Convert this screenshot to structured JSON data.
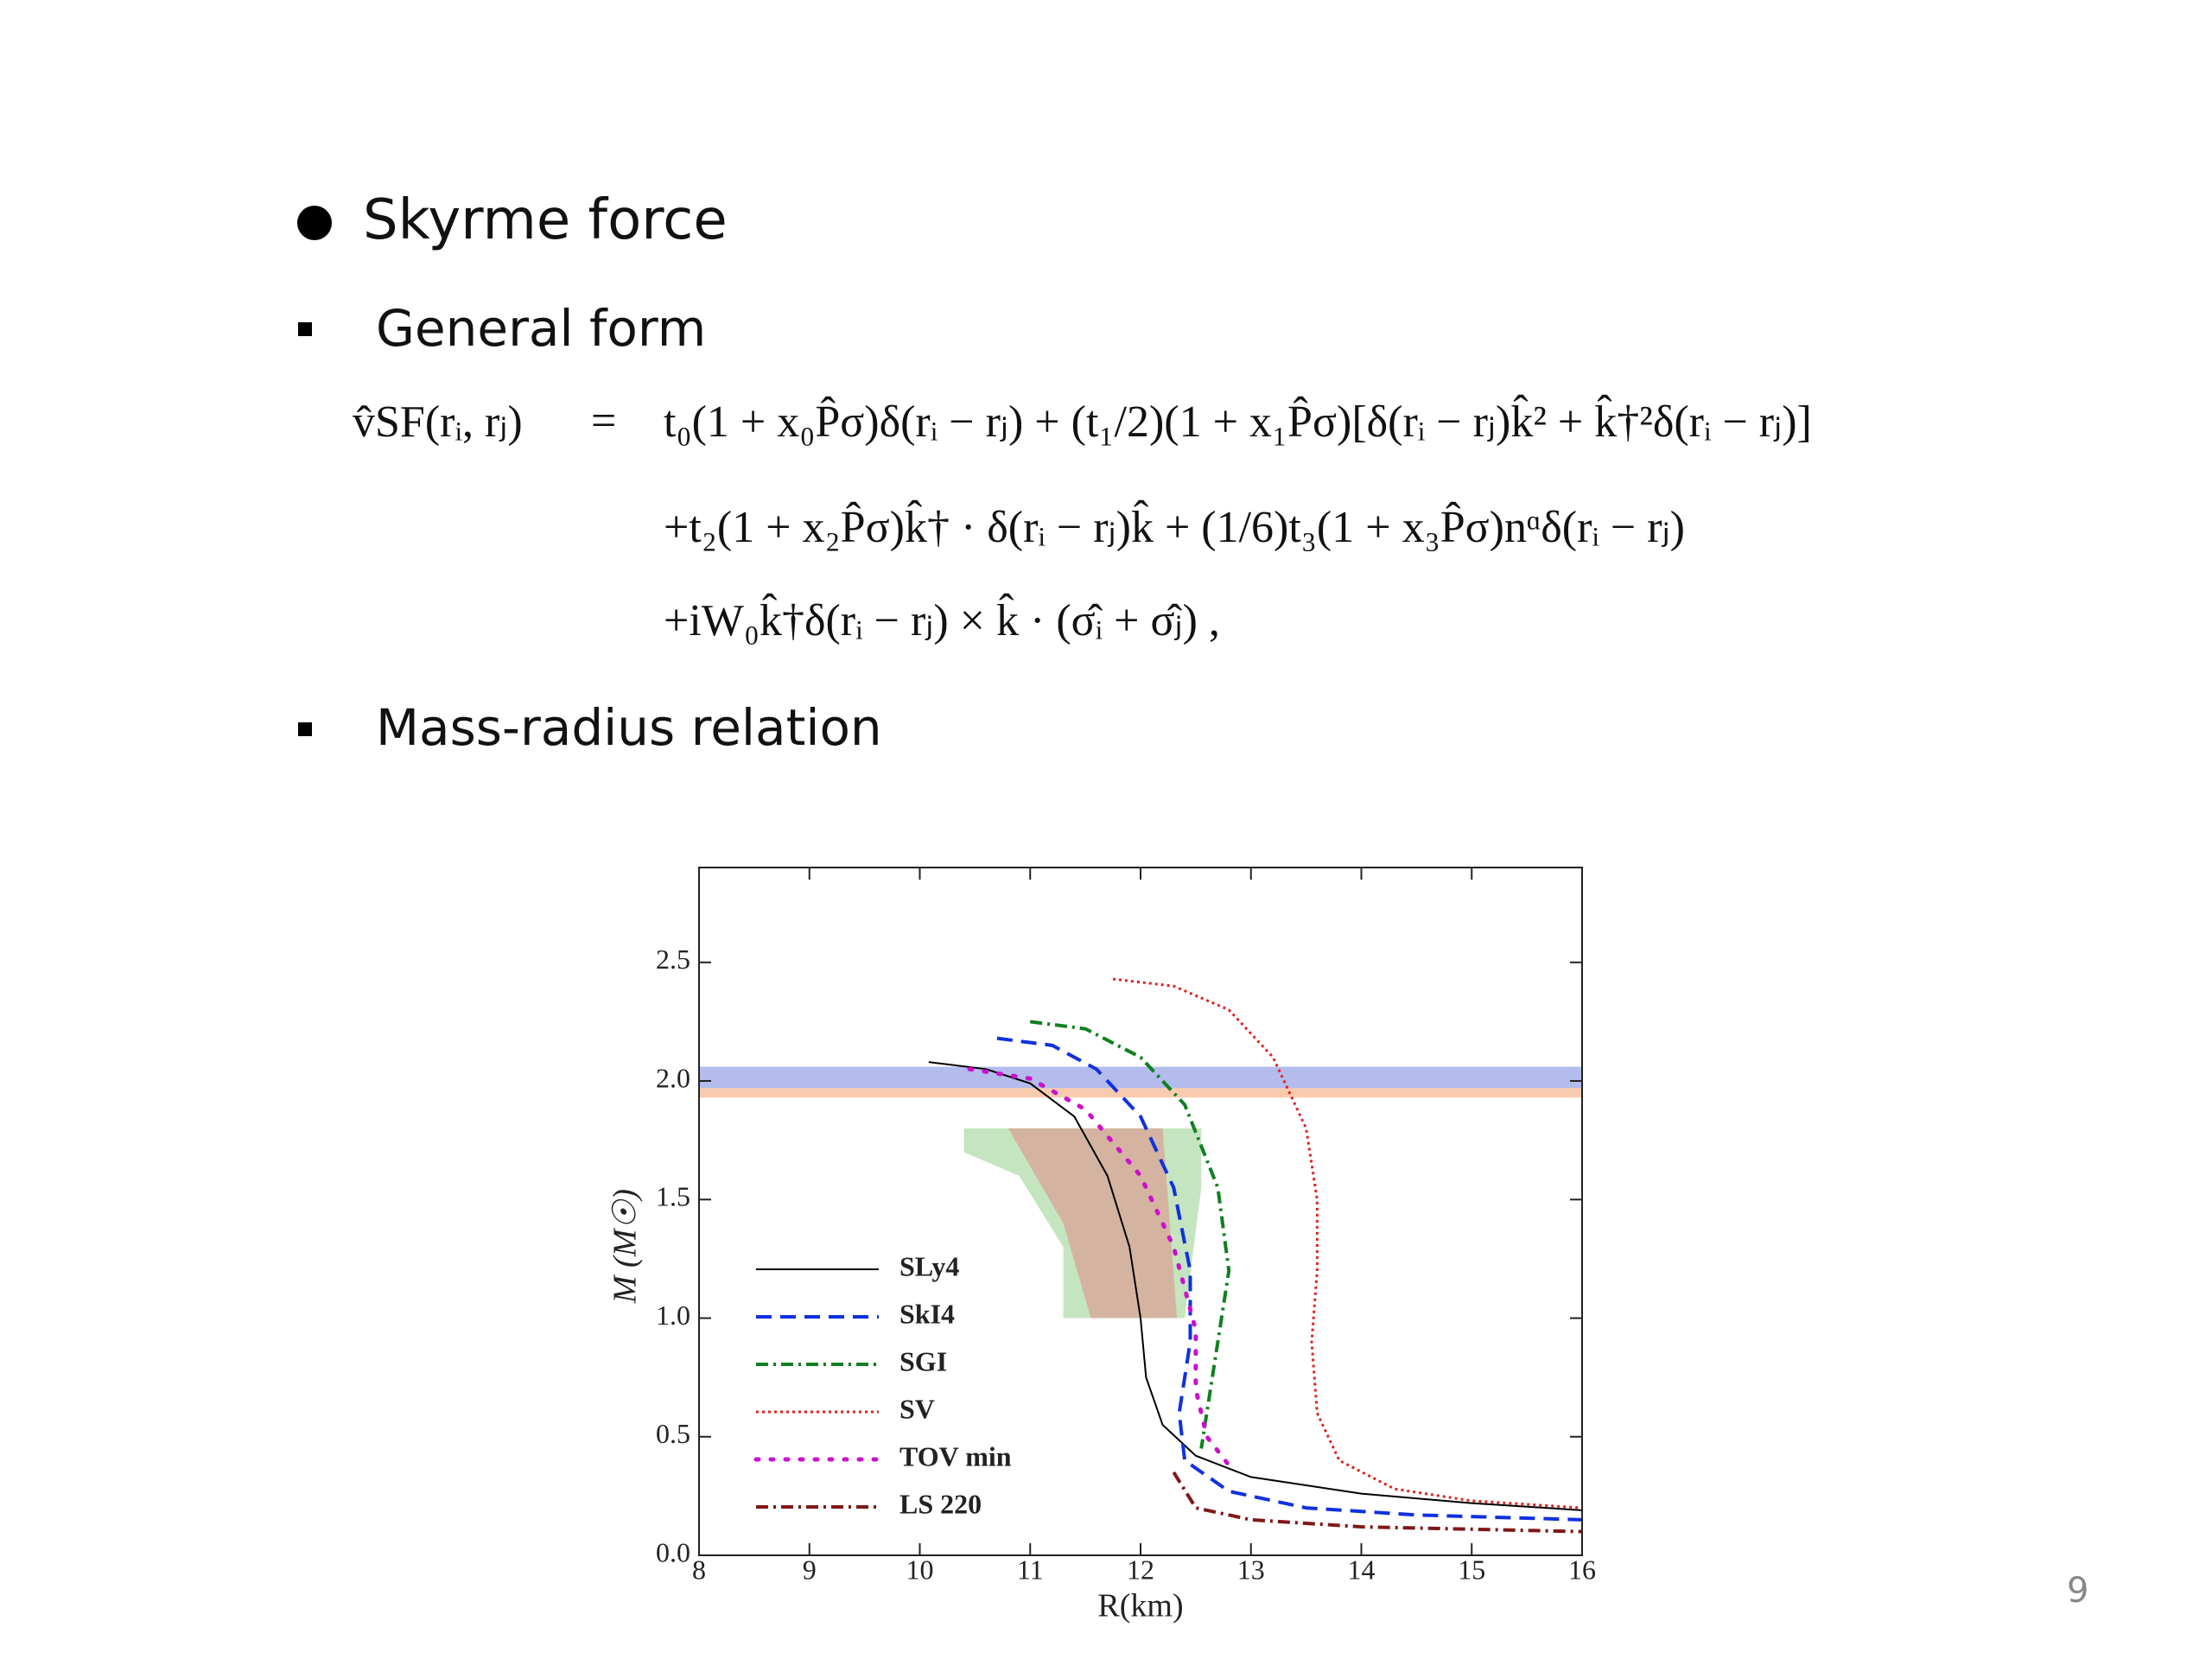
{
  "slide": {
    "heading": "Skyrme force",
    "items": [
      "General form",
      "Mass-radius relation"
    ],
    "equation": {
      "lhs": "v̂SF(rᵢ, rⱼ)",
      "relation": "=",
      "lines": [
        "t₀(1 + x₀P̂σ)δ(rᵢ − rⱼ) + (t₁/2)(1 + x₁P̂σ)[δ(rᵢ − rⱼ)k̂² + k̂†²δ(rᵢ − rⱼ)]",
        "+t₂(1 + x₂P̂σ)k̂† · δ(rᵢ − rⱼ)k̂ + (1/6)t₃(1 + x₃P̂σ)nᵅδ(rᵢ − rⱼ)",
        "+iW₀k̂†δ(rᵢ − rⱼ) × k̂ · (σ̂ᵢ + σ̂ⱼ) ,"
      ]
    },
    "page_number": "9"
  },
  "chart_data": {
    "type": "line",
    "x_label": "R(km)",
    "y_label": "M (M☉)",
    "xlim": [
      8,
      16
    ],
    "ylim": [
      0,
      2.9
    ],
    "xticks": [
      8,
      9,
      10,
      11,
      12,
      13,
      14,
      15,
      16
    ],
    "yticks": [
      {
        "value": 0,
        "label": "0.0"
      },
      0.5,
      {
        "value": 1,
        "label": "1.0"
      },
      1.5,
      {
        "value": 2,
        "label": "2.0"
      },
      2.5
    ],
    "legend": "lower left",
    "bands": [
      {
        "y": [
          1.97,
          2.06
        ],
        "color": "#8090e0"
      },
      {
        "y": [
          1.93,
          1.97
        ],
        "color": "#f4a878"
      }
    ],
    "regions": [
      {
        "x": [
          10.4,
          12.55,
          12.55,
          12.4,
          11.3,
          11.3,
          10.9,
          10.4
        ],
        "y": [
          1.8,
          1.8,
          1.55,
          1.0,
          1.0,
          1.3,
          1.6,
          1.7
        ],
        "color": "#c5e5c0"
      },
      {
        "x": [
          10.8,
          12.2,
          12.33,
          11.55,
          11.3
        ],
        "y": [
          1.8,
          1.8,
          1.0,
          1.0,
          1.4
        ],
        "color": "#d4b4a0"
      }
    ],
    "series": [
      {
        "name": "SLy4",
        "color": "#000000",
        "style": "solid",
        "x": [
          10.08,
          10.6,
          11.0,
          11.4,
          11.7,
          11.9,
          12.0,
          12.05,
          12.2,
          12.5,
          13,
          14,
          15,
          16
        ],
        "values": [
          2.08,
          2.05,
          1.99,
          1.85,
          1.6,
          1.3,
          1.0,
          0.75,
          0.55,
          0.42,
          0.33,
          0.26,
          0.22,
          0.19
        ]
      },
      {
        "name": "SkI4",
        "color": "#1030e0",
        "style": "dashed",
        "x": [
          10.7,
          11.2,
          11.6,
          12.0,
          12.3,
          12.45,
          12.45,
          12.35,
          12.4,
          12.8,
          13.5,
          14.5,
          16
        ],
        "values": [
          2.18,
          2.15,
          2.05,
          1.85,
          1.55,
          1.2,
          0.9,
          0.6,
          0.4,
          0.27,
          0.2,
          0.17,
          0.15
        ]
      },
      {
        "name": "SGI",
        "color": "#108020",
        "style": "dashdot",
        "x": [
          11.0,
          11.5,
          12.0,
          12.4,
          12.7,
          12.8,
          12.7,
          12.6,
          12.55
        ],
        "values": [
          2.25,
          2.22,
          2.1,
          1.9,
          1.55,
          1.2,
          0.9,
          0.6,
          0.45
        ]
      },
      {
        "name": "SV",
        "color": "#e02020",
        "style": "dotted",
        "x": [
          11.75,
          12.3,
          12.8,
          13.2,
          13.5,
          13.6,
          13.6,
          13.55,
          13.6,
          13.8,
          14.3,
          15,
          16
        ],
        "values": [
          2.43,
          2.4,
          2.3,
          2.1,
          1.8,
          1.5,
          1.2,
          0.9,
          0.6,
          0.4,
          0.28,
          0.23,
          0.2
        ]
      },
      {
        "name": "TOV min",
        "color": "#cc10cc",
        "style": "sparse",
        "x": [
          10.45,
          11.0,
          11.5,
          12.0,
          12.3,
          12.5,
          12.5,
          12.6,
          12.85
        ],
        "values": [
          2.05,
          2.01,
          1.88,
          1.6,
          1.3,
          0.95,
          0.7,
          0.5,
          0.35
        ]
      },
      {
        "name": "LS 220",
        "color": "#801818",
        "style": "dashdot",
        "x": [
          12.3,
          12.5,
          13,
          14,
          15,
          16
        ],
        "values": [
          0.35,
          0.2,
          0.15,
          0.12,
          0.11,
          0.1
        ]
      }
    ]
  }
}
